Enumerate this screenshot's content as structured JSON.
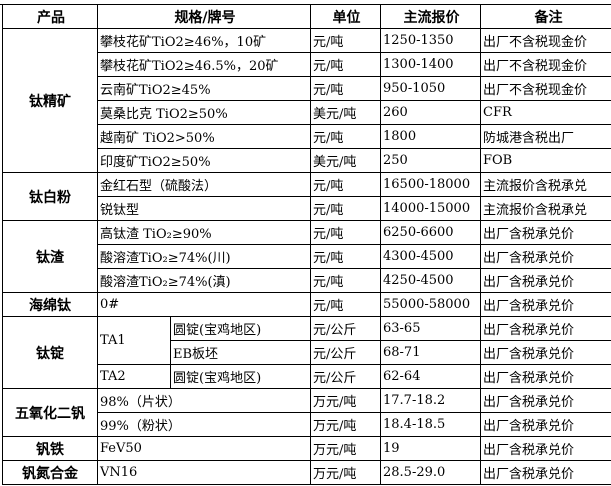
{
  "headers": {
    "product": "产品",
    "spec": "规格/牌号",
    "unit": "单位",
    "price": "主流报价",
    "note": "备注"
  },
  "groups": {
    "titanium_concentrate": {
      "product": "钛精矿",
      "rows": [
        {
          "spec": "攀枝花矿TiO2≥46%，10矿",
          "unit": "元/吨",
          "price": "1250-1350",
          "note": "出厂不含税现金价"
        },
        {
          "spec": "攀枝花矿TiO2≥46.5%，20矿",
          "unit": "元/吨",
          "price": "1300-1400",
          "note": "出厂不含税现金价"
        },
        {
          "spec": "云南矿TiO2≥45%",
          "unit": "元/吨",
          "price": "950-1050",
          "note": "出厂不含税现金价"
        },
        {
          "spec": "莫桑比克 TiO2≥50%",
          "unit": "美元/吨",
          "price": "260",
          "note": "CFR"
        },
        {
          "spec": "越南矿 TiO2>50%",
          "unit": "元/吨",
          "price": "1800",
          "note": "防城港含税出厂"
        },
        {
          "spec": "印度矿TiO2≥50%",
          "unit": "美元/吨",
          "price": "250",
          "note": "FOB"
        }
      ]
    },
    "titanium_dioxide": {
      "product": "钛白粉",
      "rows": [
        {
          "spec": "金红石型（硫酸法）",
          "unit": "元/吨",
          "price": "16500-18000",
          "note": "主流报价含税承兑"
        },
        {
          "spec": "锐钛型",
          "unit": "元/吨",
          "price": "14000-15000",
          "note": "主流报价含税承兑"
        }
      ]
    },
    "titanium_slag": {
      "product": "钛渣",
      "rows": [
        {
          "spec": "高钛渣 TiO₂≥90%",
          "unit": "元/吨",
          "price": "6250-6600",
          "note": "出厂含税承兑价"
        },
        {
          "spec": "酸溶渣TiO₂≥74%(川)",
          "unit": "元/吨",
          "price": "4300-4500",
          "note": "出厂含税承兑价"
        },
        {
          "spec": "酸溶渣TiO₂≥74%(滇)",
          "unit": "元/吨",
          "price": "4250-4500",
          "note": "出厂含税承兑价"
        }
      ]
    },
    "sponge_titanium": {
      "product": "海绵钛",
      "rows": [
        {
          "spec": "0#",
          "unit": "元/吨",
          "price": "55000-58000",
          "note": "出厂含税承兑价"
        }
      ]
    },
    "titanium_ingot": {
      "product": "钛锭",
      "rows": [
        {
          "grade": "TA1",
          "spec": "圆锭(宝鸡地区)",
          "unit": "元/公斤",
          "price": "63-65",
          "note": "出厂含税承兑价"
        },
        {
          "spec": "EB板坯",
          "unit": "元/公斤",
          "price": "68-71",
          "note": "出厂含税承兑价"
        },
        {
          "grade": "TA2",
          "spec": "圆锭(宝鸡地区)",
          "unit": "元/公斤",
          "price": "62-64",
          "note": "出厂含税承兑价"
        }
      ]
    },
    "vanadium_pentoxide": {
      "product": "五氧化二钒",
      "rows": [
        {
          "spec": "98%（片状）",
          "unit": "万元/吨",
          "price": "17.7-18.2",
          "note": "出厂含税承兑价"
        },
        {
          "spec": "99%（粉状）",
          "unit": "万元/吨",
          "price": "18.4-18.5",
          "note": "出厂含税承兑价"
        }
      ]
    },
    "ferrovanadium": {
      "product": "钒铁",
      "rows": [
        {
          "spec": "FeV50",
          "unit": "万元/吨",
          "price": "19",
          "note": "出厂含税承兑价"
        }
      ]
    },
    "vanadium_nitrogen": {
      "product": "钒氮合金",
      "rows": [
        {
          "spec": "VN16",
          "unit": "万元/吨",
          "price": "28.5-29.0",
          "note": "出厂含税承兑价"
        }
      ]
    }
  }
}
